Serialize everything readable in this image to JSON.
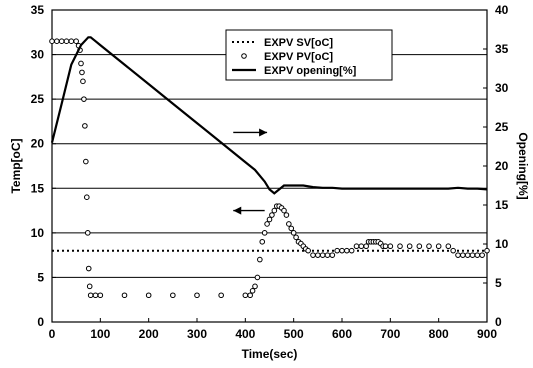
{
  "chart_data": {
    "type": "line",
    "title": "",
    "xlabel": "Time(sec)",
    "ylabel_left": "Temp[oC]",
    "ylabel_right": "Opening[%]",
    "xlim": [
      0,
      900
    ],
    "ylim_left": [
      0,
      35
    ],
    "ylim_right": [
      0,
      40
    ],
    "x_ticks": [
      0,
      100,
      200,
      300,
      400,
      500,
      600,
      700,
      800,
      900
    ],
    "y_left_ticks": [
      0,
      5,
      10,
      15,
      20,
      25,
      30,
      35
    ],
    "y_right_ticks": [
      0,
      5,
      10,
      15,
      20,
      25,
      30,
      35,
      40
    ],
    "grid": "horizontal",
    "legend_position": "top-center",
    "series": [
      {
        "name": "EXPV SV[oC]",
        "axis": "left",
        "style": "dotted",
        "x": [
          0,
          900
        ],
        "y": [
          8,
          8
        ]
      },
      {
        "name": "EXPV PV[oC]",
        "axis": "left",
        "style": "circles",
        "x": [
          0,
          10,
          20,
          30,
          40,
          50,
          55,
          58,
          60,
          62,
          64,
          66,
          68,
          70,
          72,
          74,
          76,
          78,
          80,
          90,
          100,
          150,
          200,
          250,
          300,
          350,
          400,
          410,
          415,
          420,
          425,
          430,
          435,
          440,
          445,
          450,
          455,
          460,
          465,
          470,
          475,
          480,
          485,
          490,
          495,
          500,
          505,
          510,
          515,
          520,
          525,
          530,
          540,
          550,
          560,
          570,
          580,
          590,
          600,
          610,
          620,
          630,
          640,
          650,
          655,
          660,
          665,
          670,
          675,
          680,
          685,
          690,
          700,
          720,
          740,
          760,
          780,
          800,
          820,
          830,
          840,
          850,
          860,
          870,
          880,
          890,
          900
        ],
        "y": [
          31.5,
          31.5,
          31.5,
          31.5,
          31.5,
          31.5,
          31,
          30.5,
          29,
          28,
          27,
          25,
          22,
          18,
          14,
          10,
          6,
          4,
          3,
          3,
          3,
          3,
          3,
          3,
          3,
          3,
          3,
          3,
          3.5,
          4,
          5,
          7,
          9,
          10,
          11,
          11.5,
          12,
          12.5,
          13,
          13,
          12.8,
          12.5,
          12,
          11,
          10.5,
          10,
          9.5,
          9,
          8.8,
          8.5,
          8.2,
          8,
          7.5,
          7.5,
          7.5,
          7.5,
          7.5,
          8,
          8,
          8,
          8,
          8.5,
          8.5,
          8.5,
          9,
          9,
          9,
          9,
          9,
          8.8,
          8.5,
          8.5,
          8.5,
          8.5,
          8.5,
          8.5,
          8.5,
          8.5,
          8.5,
          8,
          7.5,
          7.5,
          7.5,
          7.5,
          7.5,
          7.5,
          8
        ]
      },
      {
        "name": "EXPV opening[%]",
        "axis": "right",
        "style": "solid",
        "x": [
          0,
          20,
          40,
          60,
          75,
          80,
          90,
          100,
          150,
          200,
          250,
          300,
          350,
          400,
          420,
          440,
          450,
          460,
          470,
          480,
          490,
          500,
          520,
          540,
          560,
          580,
          600,
          620,
          640,
          660,
          680,
          700,
          720,
          740,
          760,
          780,
          800,
          820,
          840,
          860,
          880,
          900
        ],
        "y": [
          23,
          28,
          33,
          35.5,
          36.5,
          36.5,
          36,
          35.5,
          33,
          30.5,
          28,
          25.5,
          23,
          20.5,
          19.5,
          18,
          17,
          16.5,
          17,
          17.5,
          17.5,
          17.5,
          17.5,
          17.3,
          17.2,
          17.2,
          17.1,
          17.1,
          17.1,
          17.1,
          17.1,
          17.1,
          17.1,
          17.1,
          17.1,
          17.1,
          17.1,
          17.1,
          17.2,
          17.1,
          17.1,
          17
        ]
      }
    ],
    "annotations": [
      {
        "type": "arrow",
        "direction": "right",
        "points_to": "right-axis"
      },
      {
        "type": "arrow",
        "direction": "left",
        "points_to": "left-axis"
      }
    ]
  }
}
